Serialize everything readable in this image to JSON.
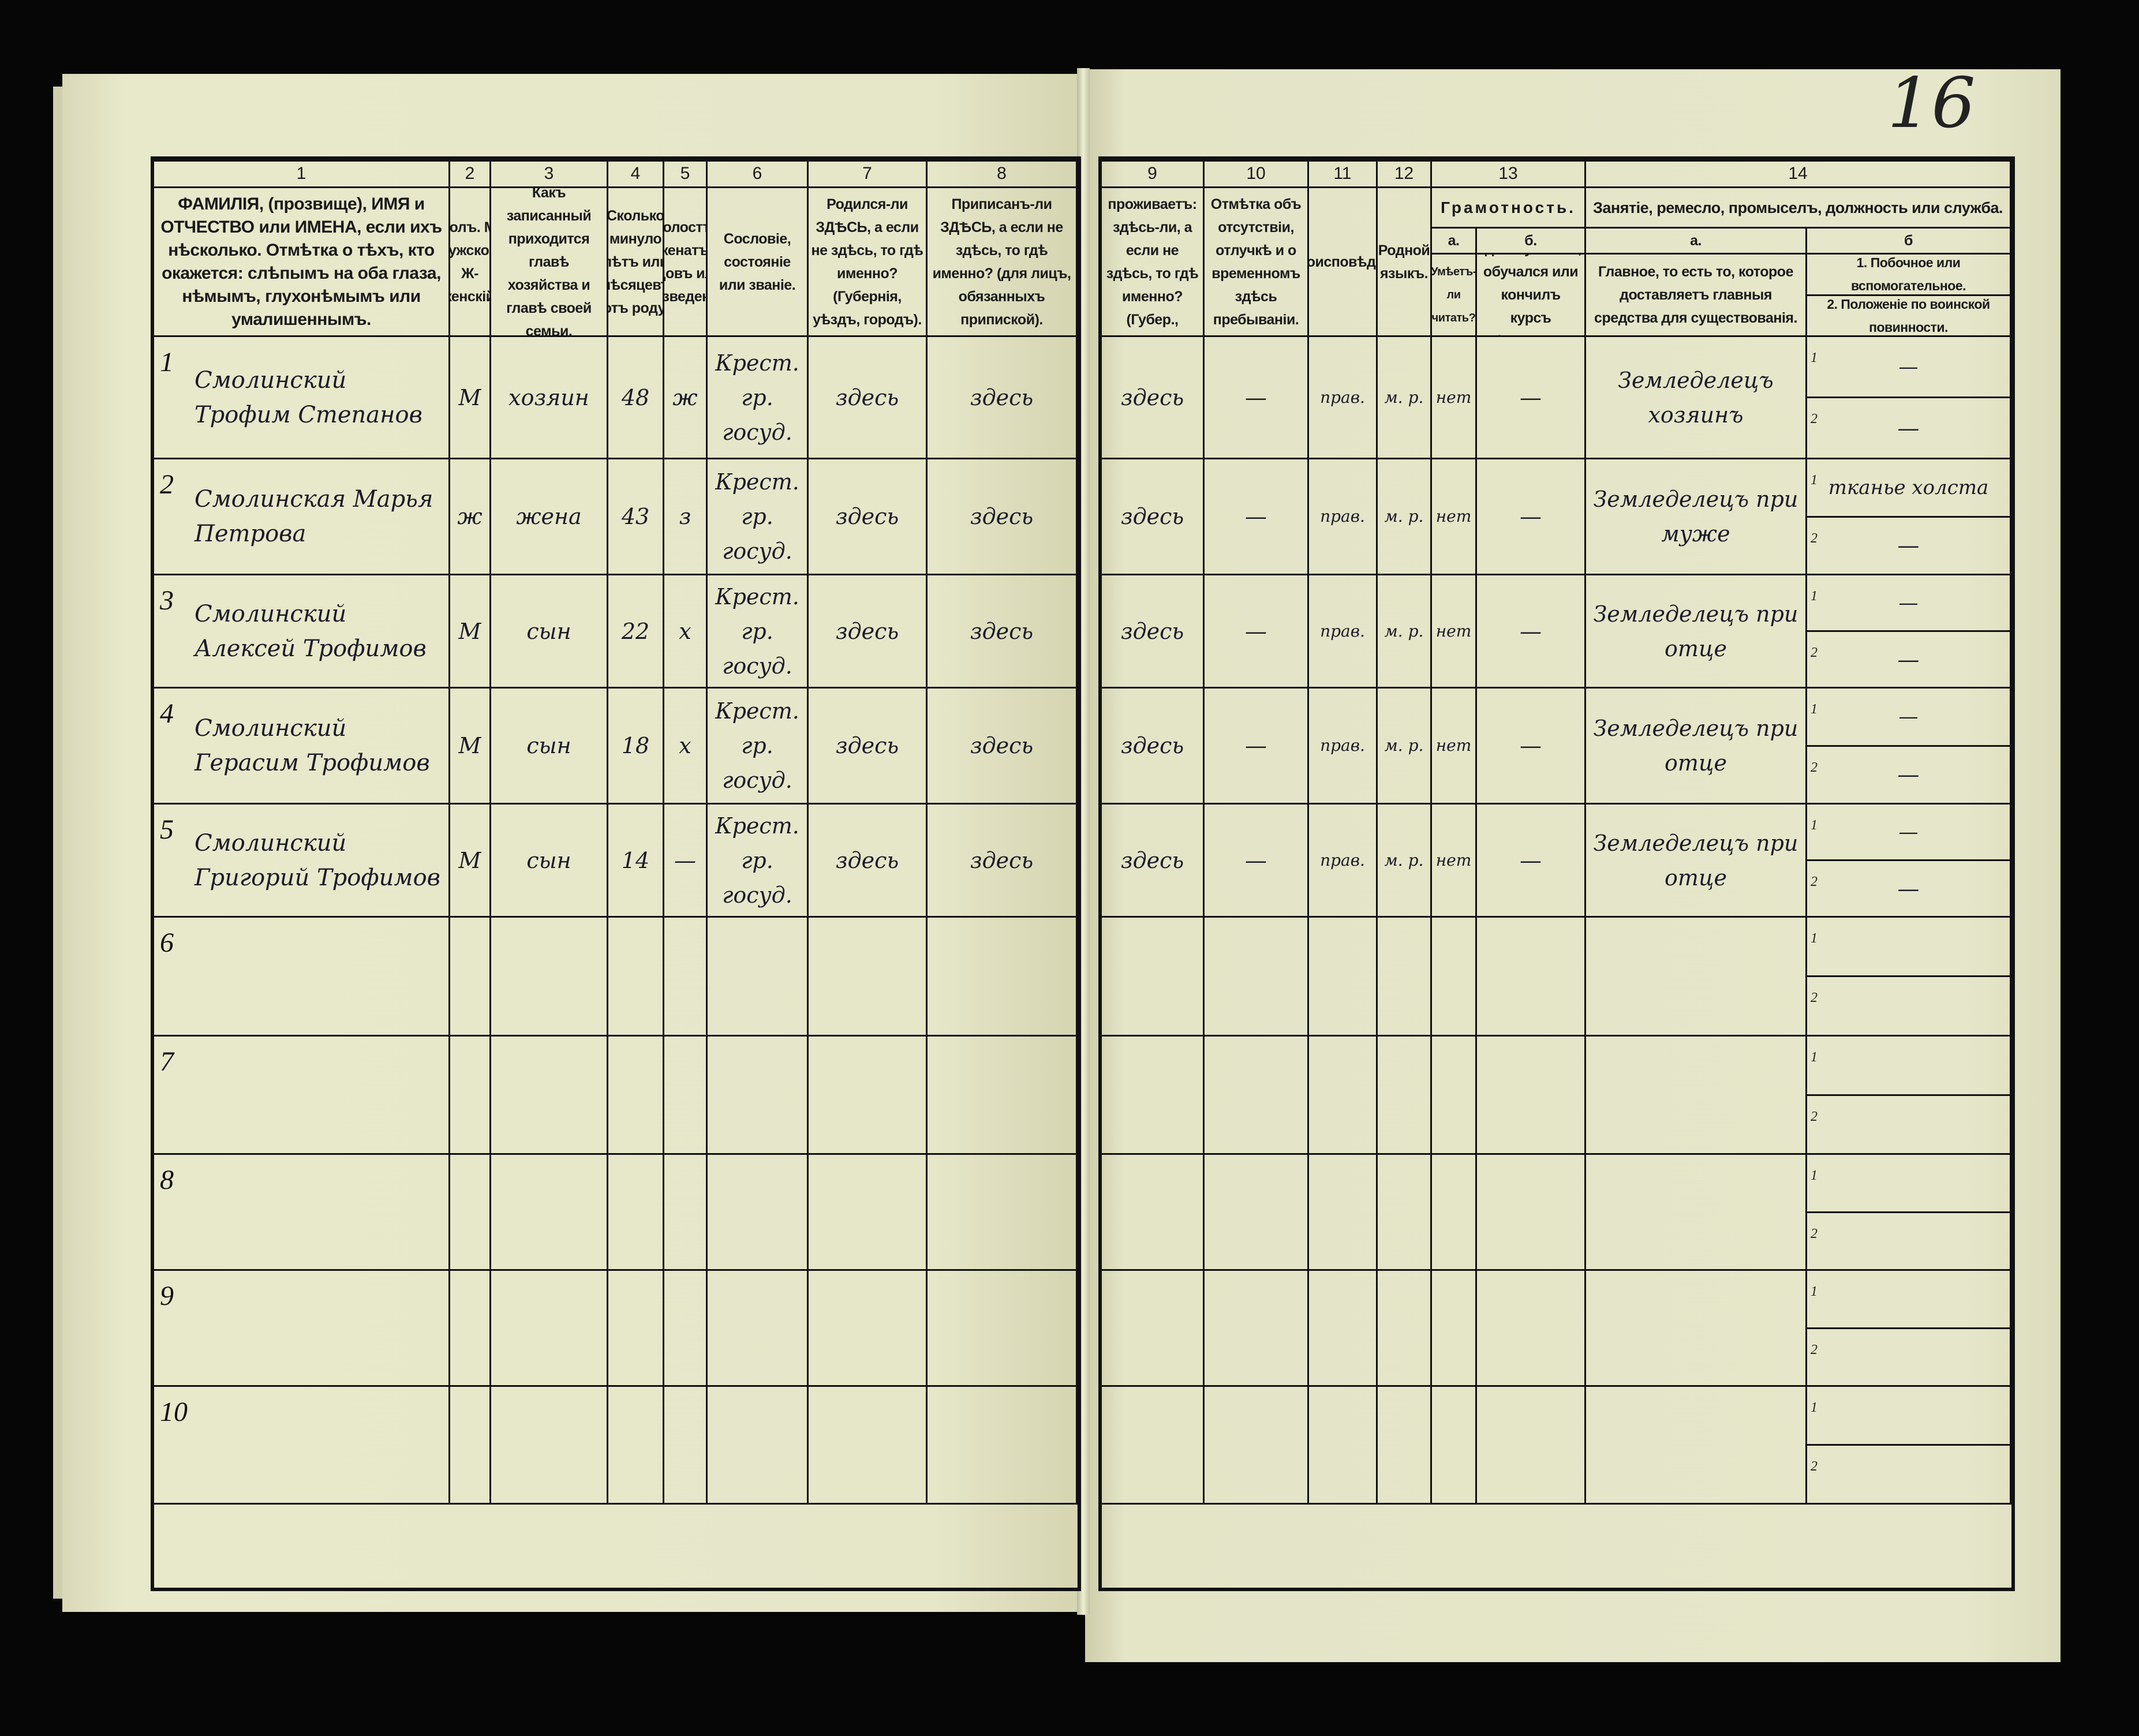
{
  "page_number": "16",
  "header": {
    "numbers": [
      "1",
      "2",
      "3",
      "4",
      "5",
      "6",
      "7",
      "8",
      "9",
      "10",
      "11",
      "12",
      "13",
      "14"
    ],
    "c1": "ФАМИЛІЯ, (прозвище), ИМЯ и ОТЧЕСТВО или ИМЕНА, если ихъ нѣсколько. Отмѣтка о тѣхъ, кто окажется: слѣпымъ на оба глаза, нѣмымъ, глухонѣмымъ или умалишеннымъ.",
    "c2": "Полъ. М-мужской. Ж-женскій.",
    "c3": "Какъ записанный приходится главѣ хозяйства и главѣ своей семьи.",
    "c4": "Сколько минуло лѣтъ или мѣсяцевъ отъ роду.",
    "c5": "Холостъ, женатъ, вдовъ или разведенъ.",
    "c6": "Сословіе, состояніе или званіе.",
    "c7": "Родился-ли ЗДѢСЬ, а если не здѣсь, то гдѣ именно? (Губернія, уѣздъ, городъ).",
    "c8": "Приписанъ-ли ЗДѢСЬ, а если не здѣсь, то гдѣ именно? (для лицъ, обязанныхъ припиской).",
    "c9": "Гдѣ обыкновенно проживаетъ: здѣсь-ли, а если не здѣсь, то гдѣ именно? (Губер., уѣздъ, городъ).",
    "c10": "Отмѣтка объ отсутствіи, отлучкѣ и о временномъ здѣсь пребываніи.",
    "c11": "Вѣроисповѣданіе.",
    "c12": "Родной языкъ.",
    "c13": "Грамотность.",
    "c13a_label": "а.",
    "c13a": "Умѣетъ-ли читать?",
    "c13b_label": "б.",
    "c13b": "гдѣ обучается, обучался или кончилъ курсъ образованія?",
    "c14": "Занятіе, ремесло, промыселъ, должность или служба.",
    "c14a_label": "а.",
    "c14a": "Главное, то есть то, которое доставляетъ главныя средства для существованія.",
    "c14b_label": "б",
    "c14b1": "1. Побочное или вспомогательное.",
    "c14b2": "2. Положеніе по воинской повинности."
  },
  "sub_labels": {
    "one": "1",
    "two": "2"
  },
  "rows": [
    {
      "n": "1",
      "name": "Смолинский Трофим Степанов",
      "sex": "М",
      "relation": "хозяин",
      "age": "48",
      "marital": "ж",
      "estate": "Крест. гр. госуд.",
      "born": "здесь",
      "registered": "здесь",
      "resides": "здесь",
      "absence": "—",
      "religion": "прав.",
      "language": "м. р.",
      "reads": "нет",
      "school": "—",
      "occupation": "Земледелецъ хозяинъ",
      "side": "—",
      "military": "—"
    },
    {
      "n": "2",
      "name": "Смолинская Марья Петрова",
      "sex": "ж",
      "relation": "жена",
      "age": "43",
      "marital": "з",
      "estate": "Крест. гр. госуд.",
      "born": "здесь",
      "registered": "здесь",
      "resides": "здесь",
      "absence": "—",
      "religion": "прав.",
      "language": "м. р.",
      "reads": "нет",
      "school": "—",
      "occupation": "Земледелецъ при муже",
      "side": "тканье холста",
      "military": "—"
    },
    {
      "n": "3",
      "name": "Смолинский Алексей Трофимов",
      "sex": "М",
      "relation": "сын",
      "age": "22",
      "marital": "х",
      "estate": "Крест. гр. госуд.",
      "born": "здесь",
      "registered": "здесь",
      "resides": "здесь",
      "absence": "—",
      "religion": "прав.",
      "language": "м. р.",
      "reads": "нет",
      "school": "—",
      "occupation": "Земледелецъ при отце",
      "side": "—",
      "military": "—"
    },
    {
      "n": "4",
      "name": "Смолинский Герасим Трофимов",
      "sex": "М",
      "relation": "сын",
      "age": "18",
      "marital": "х",
      "estate": "Крест. гр. госуд.",
      "born": "здесь",
      "registered": "здесь",
      "resides": "здесь",
      "absence": "—",
      "religion": "прав.",
      "language": "м. р.",
      "reads": "нет",
      "school": "—",
      "occupation": "Земледелецъ при отце",
      "side": "—",
      "military": "—"
    },
    {
      "n": "5",
      "name": "Смолинский Григорий Трофимов",
      "sex": "М",
      "relation": "сын",
      "age": "14",
      "marital": "—",
      "estate": "Крест. гр. госуд.",
      "born": "здесь",
      "registered": "здесь",
      "resides": "здесь",
      "absence": "—",
      "religion": "прав.",
      "language": "м. р.",
      "reads": "нет",
      "school": "—",
      "occupation": "Земледелецъ при отце",
      "side": "—",
      "military": "—"
    },
    {
      "n": "6"
    },
    {
      "n": "7"
    },
    {
      "n": "8"
    },
    {
      "n": "9"
    },
    {
      "n": "10"
    }
  ]
}
